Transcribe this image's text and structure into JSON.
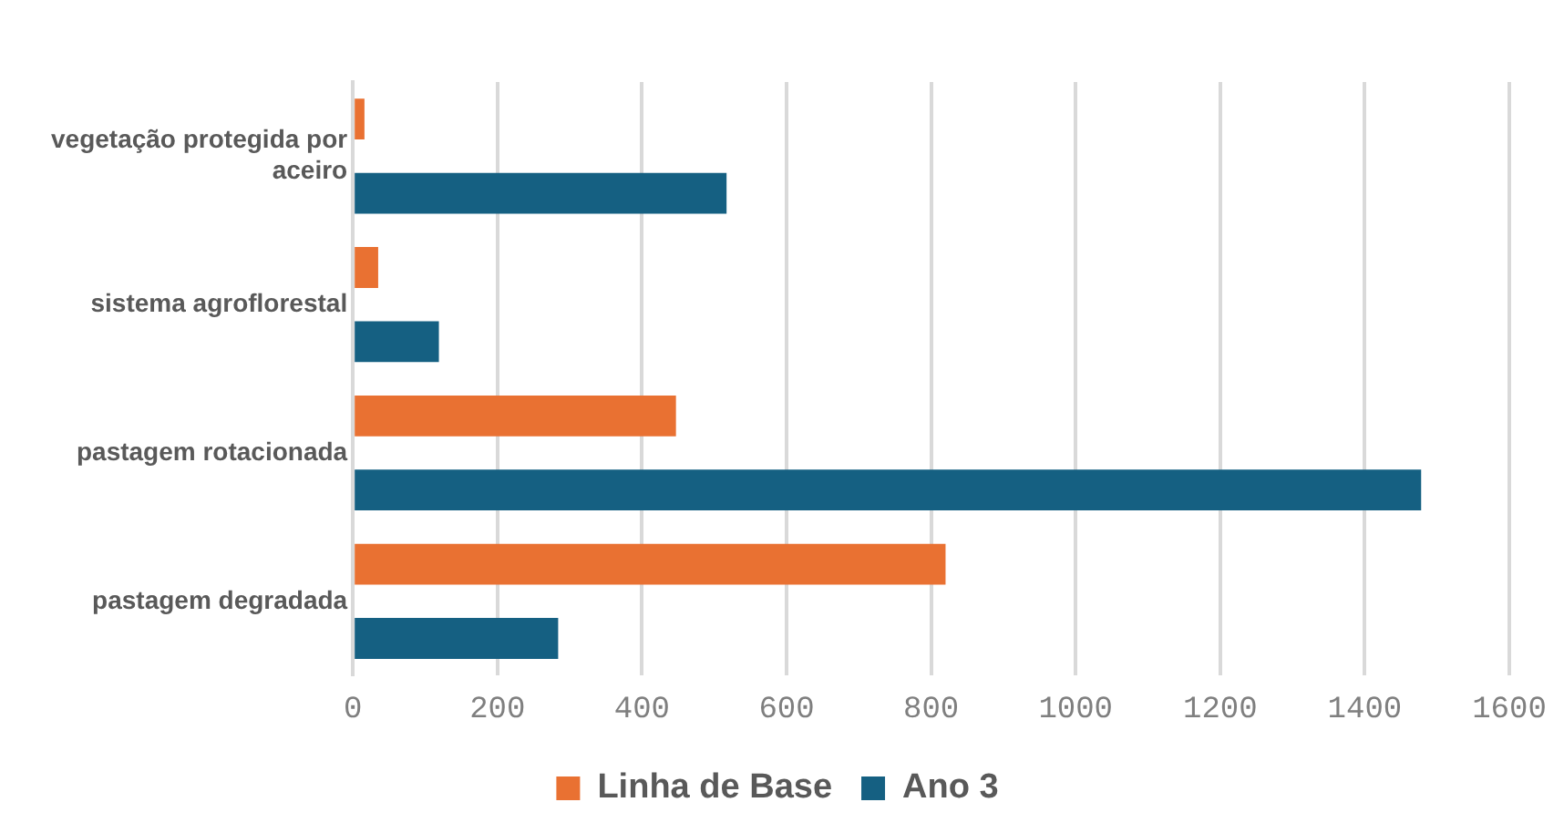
{
  "chart_data": {
    "type": "bar",
    "orientation": "horizontal",
    "categories": [
      "vegetação protegida por aceiro",
      "sistema agroflorestal",
      "pastagem rotacionada",
      "pastagem degradada"
    ],
    "series": [
      {
        "name": "Linha de Base",
        "color": "#e97132",
        "values": [
          16,
          35,
          447,
          820
        ]
      },
      {
        "name": "Ano 3",
        "color": "#156082",
        "values": [
          517,
          119,
          1478,
          284
        ]
      }
    ],
    "xlim": [
      0,
      1600
    ],
    "xticks": [
      0,
      200,
      400,
      600,
      800,
      1000,
      1200,
      1400,
      1600
    ],
    "grid": "x",
    "legend": "bottom"
  }
}
